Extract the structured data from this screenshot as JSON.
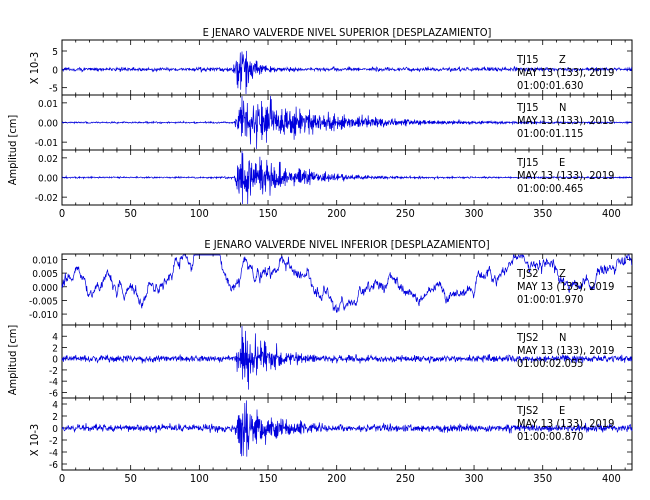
{
  "colors": {
    "trace": "#0000dd",
    "axis": "#000000",
    "background": "#ffffff"
  },
  "panel_common": {
    "xlim": [
      0,
      415
    ],
    "x_ticks": [
      "0",
      "50",
      "100",
      "150",
      "200",
      "250",
      "300",
      "350",
      "400"
    ]
  },
  "chart_data": [
    {
      "type": "line",
      "title": "E JENARO VALVERDE NIVEL SUPERIOR [DESPLAZAMIENTO]",
      "ylabel": "Amplitud [cm]",
      "ylabel_secondary": "X 10-3",
      "xlim": [
        0,
        415
      ],
      "x_ticks": [
        "0",
        "50",
        "100",
        "150",
        "200",
        "250",
        "300",
        "350",
        "400"
      ],
      "traces": [
        {
          "station": "TJ15",
          "component": "Z",
          "date": "MAY 13 (133), 2019",
          "time": "01:00:01.630",
          "ylim": [
            -7,
            8
          ],
          "y_ticks": [
            5,
            0,
            -5
          ],
          "y_tick_labels": [
            "5",
            "0",
            "-5"
          ],
          "noise": 0.25,
          "onset": 124,
          "peak_time": 130,
          "peak_amplitude": 6.0,
          "decay": 10
        },
        {
          "station": "TJ15",
          "component": "N",
          "date": "MAY 13 (133), 2019",
          "time": "01:00:01.115",
          "ylim": [
            -0.014,
            0.014
          ],
          "y_ticks": [
            0.01,
            0.0,
            -0.01
          ],
          "y_tick_labels": [
            "0.01",
            "0.00",
            "-0.01"
          ],
          "noise": 0.0002,
          "onset": 125,
          "peak_time": 131,
          "peak_amplitude": 0.012,
          "decay": 55
        },
        {
          "station": "TJ15",
          "component": "E",
          "date": "MAY 13 (133), 2019",
          "time": "01:00:00.465",
          "ylim": [
            -0.028,
            0.028
          ],
          "y_ticks": [
            0.02,
            0.0,
            -0.02
          ],
          "y_tick_labels": [
            "0.02",
            "0.00",
            "-0.02"
          ],
          "noise": 0.0004,
          "onset": 125,
          "peak_time": 131,
          "peak_amplitude": 0.024,
          "decay": 35
        }
      ]
    },
    {
      "type": "line",
      "title": "E JENARO VALVERDE NIVEL INFERIOR [DESPLAZAMIENTO]",
      "ylabel": "Amplitud [cm]",
      "ylabel_secondary": "X 10-3",
      "xlim": [
        0,
        415
      ],
      "x_ticks": [
        "0",
        "50",
        "100",
        "150",
        "200",
        "250",
        "300",
        "350",
        "400"
      ],
      "traces": [
        {
          "station": "TJS2",
          "component": "Z",
          "date": "MAY 13 (133), 2019",
          "time": "01:00:01.970",
          "ylim": [
            -0.014,
            0.012
          ],
          "y_ticks": [
            0.01,
            0.005,
            0.0,
            -0.005,
            -0.01
          ],
          "y_tick_labels": [
            "0.010",
            "0.005",
            "0.000",
            "-0.005",
            "-0.010"
          ],
          "noise": 0.0045,
          "onset": 0,
          "peak_time": 0,
          "peak_amplitude": 0,
          "decay": 1
        },
        {
          "station": "TJS2",
          "component": "N",
          "date": "MAY 13 (133), 2019",
          "time": "01:00:02.055",
          "ylim": [
            -7,
            6
          ],
          "y_ticks": [
            4,
            2,
            0,
            -2,
            -4,
            -6
          ],
          "y_tick_labels": [
            "4",
            "2",
            "0",
            "-2",
            "-4",
            "-6"
          ],
          "noise": 0.3,
          "onset": 126,
          "peak_time": 130,
          "peak_amplitude": 5.0,
          "decay": 20
        },
        {
          "station": "TJS2",
          "component": "E",
          "date": "MAY 13 (133), 2019",
          "time": "01:00:00.870",
          "ylim": [
            -7,
            5
          ],
          "y_ticks": [
            4,
            2,
            0,
            -2,
            -4,
            -6
          ],
          "y_tick_labels": [
            "4",
            "2",
            "0",
            "-2",
            "-4",
            "-6"
          ],
          "noise": 0.3,
          "onset": 126,
          "peak_time": 130,
          "peak_amplitude": 5.0,
          "decay": 22
        }
      ]
    }
  ]
}
